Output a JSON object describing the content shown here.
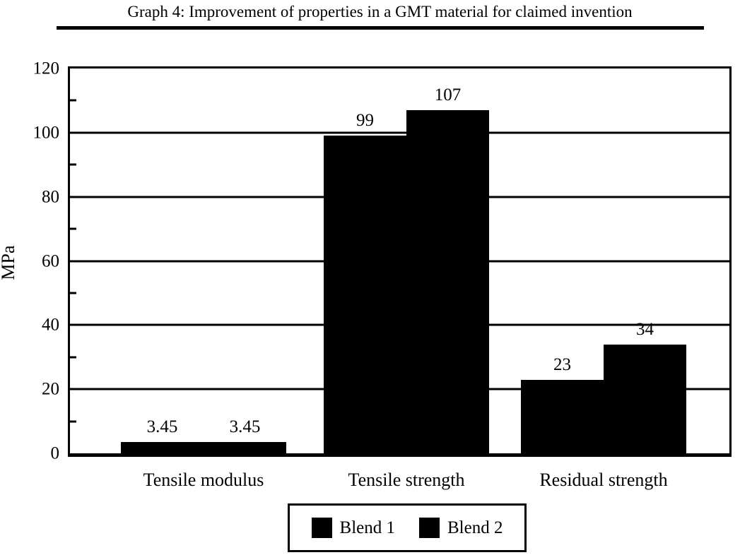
{
  "title": {
    "text": "Graph 4: Improvement of properties in a GMT material for claimed invention"
  },
  "chart_data": {
    "type": "bar",
    "title": "Graph 4: Improvement of properties in a GMT material for claimed invention",
    "categories": [
      "Tensile modulus",
      "Tensile strength",
      "Residual strength"
    ],
    "series": [
      {
        "name": "Blend 1",
        "color": "#000000",
        "values": [
          3.45,
          99,
          23
        ]
      },
      {
        "name": "Blend 2",
        "color": "#000000",
        "values": [
          3.45,
          107,
          34
        ]
      }
    ],
    "bar_value_labels": [
      [
        "3.45",
        "99",
        "23"
      ],
      [
        "3.45",
        "107",
        "34"
      ]
    ],
    "xlabel": "",
    "ylabel": "MPa",
    "ylim": [
      0,
      120
    ],
    "yticks": [
      0,
      20,
      40,
      60,
      80,
      100,
      120
    ],
    "y_minor_ticks": [
      10,
      30,
      50,
      70,
      90,
      110
    ],
    "grid": true,
    "legend_position": "bottom",
    "legend_entries": [
      "Blend 1",
      "Blend 2"
    ],
    "colors": {
      "bar": "#000000",
      "axis": "#000000",
      "text": "#000000",
      "background": "#ffffff"
    }
  }
}
